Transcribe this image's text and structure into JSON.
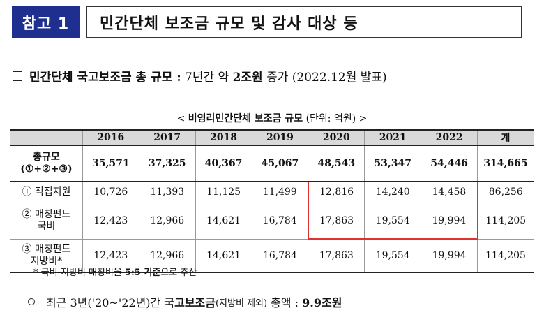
{
  "header": {
    "tag": "참고 1",
    "title": "민간단체 보조금 규모 및 감사 대상 등"
  },
  "bullet": {
    "bold_text": "민간단체 국고보조금 총 규모 :",
    "text_a": "7년간 약",
    "bold_amount": "2조원",
    "text_b": "증가 (2022.12월 발표)"
  },
  "caption": {
    "prefix": "<",
    "bold": "비영리민간단체 보조금 규모",
    "unit": "(단위: 억원)",
    "suffix": ">"
  },
  "table": {
    "columns": [
      "",
      "2016",
      "2017",
      "2018",
      "2019",
      "2020",
      "2021",
      "2022",
      "계"
    ],
    "rows": [
      {
        "label_line1": "총규모",
        "label_line2": "(①+②+③)",
        "values": [
          "35,571",
          "37,325",
          "40,367",
          "45,067",
          "48,543",
          "53,347",
          "54,446",
          "314,665"
        ]
      },
      {
        "label_line1": "① 직접지원",
        "label_line2": "",
        "values": [
          "10,726",
          "11,393",
          "11,125",
          "11,499",
          "12,816",
          "14,240",
          "14,458",
          "86,256"
        ]
      },
      {
        "label_line1": "② 매칭펀드",
        "label_line2": "국비",
        "values": [
          "12,423",
          "12,966",
          "14,621",
          "16,784",
          "17,863",
          "19,554",
          "19,994",
          "114,205"
        ]
      },
      {
        "label_line1": "③ 매칭펀드",
        "label_line2": "지방비*",
        "values": [
          "12,423",
          "12,966",
          "14,621",
          "16,784",
          "17,863",
          "19,554",
          "19,994",
          "114,205"
        ]
      }
    ]
  },
  "footnote": {
    "text_a": "* 국비-지방비 매칭비율",
    "bold": "5:5 기준",
    "text_b": "으로 추산"
  },
  "summary": {
    "text_a": "최근 3년('20~'22년)간",
    "bold_a": "국고보조금",
    "small": "(지방비 제외)",
    "text_b": "총액 :",
    "bold_b": "9.9조원"
  },
  "colors": {
    "tag_bg": "#1f2f8f",
    "highlight": "#e03030",
    "header_row_bg": "#d9d9d9"
  }
}
